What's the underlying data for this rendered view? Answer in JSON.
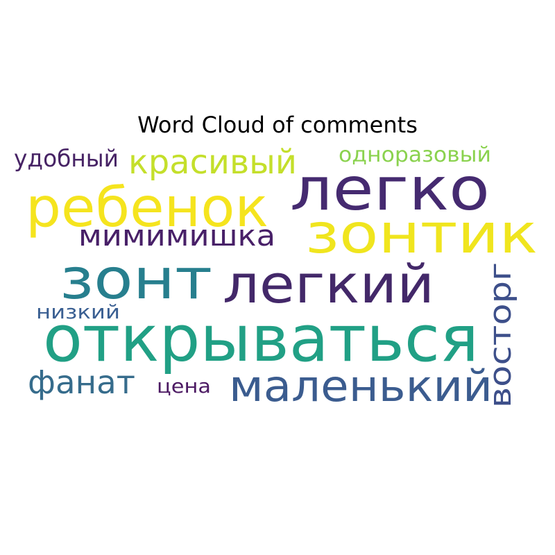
{
  "chart_data": {
    "type": "wordcloud",
    "title": "Word Cloud of comments",
    "grid": false,
    "colormap": "viridis",
    "words": [
      {
        "text": "открываться",
        "color": "#21a085"
      },
      {
        "text": "зонтик",
        "color": "#f0e51e"
      },
      {
        "text": "легко",
        "color": "#452a70"
      },
      {
        "text": "ребенок",
        "color": "#f5e41e"
      },
      {
        "text": "легкий",
        "color": "#432869"
      },
      {
        "text": "зонт",
        "color": "#277f8e"
      },
      {
        "text": "маленький",
        "color": "#3b5c8f"
      },
      {
        "text": "восторг",
        "color": "#3d4f8a"
      },
      {
        "text": "красивый",
        "color": "#c4df2b"
      },
      {
        "text": "мимимишка",
        "color": "#482068"
      },
      {
        "text": "фанат",
        "color": "#366c8c"
      },
      {
        "text": "удобный",
        "color": "#472365"
      },
      {
        "text": "одноразовый",
        "color": "#8ad24e"
      },
      {
        "text": "низкий",
        "color": "#3a5f92"
      },
      {
        "text": "цена",
        "color": "#4c1a63"
      }
    ]
  }
}
